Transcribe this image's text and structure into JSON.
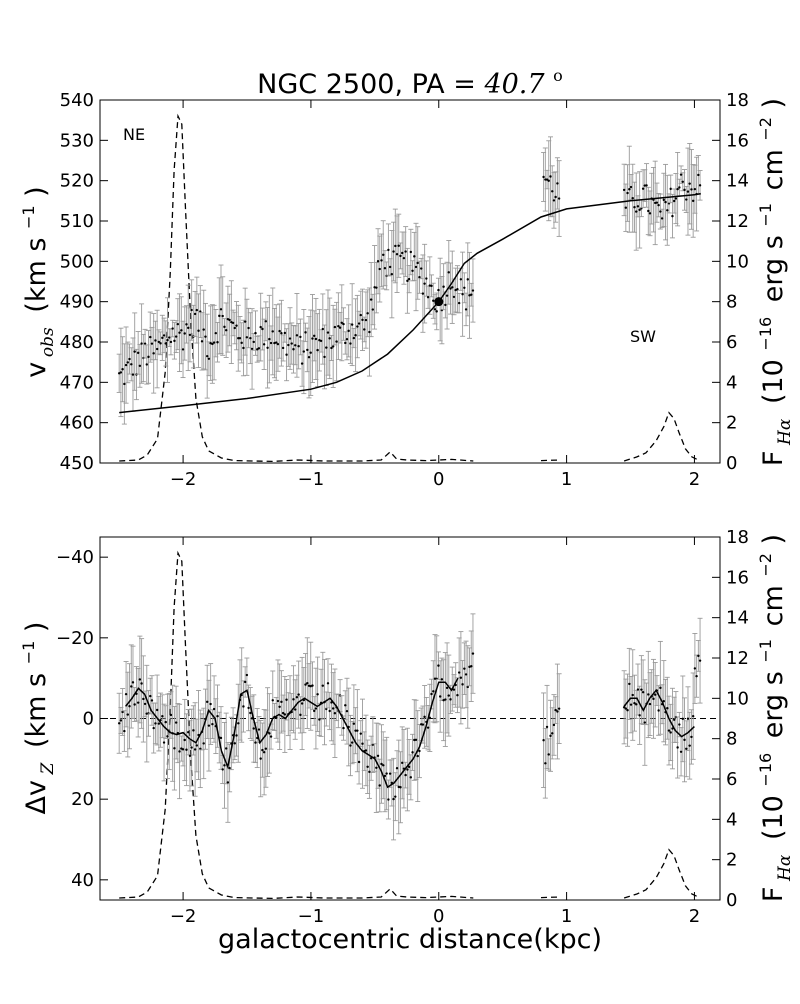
{
  "chart_data": [
    {
      "type": "line",
      "title_main": "NGC 2500, PA",
      "title_eq": "=",
      "title_angle": "40.7",
      "title_deg": "o",
      "ylabel_left": "v",
      "ylabel_left_sub": "obs",
      "ylabel_left_units": "(km s",
      "ylabel_left_exp": "−1",
      "ylabel_left_close": ")",
      "ylabel_right": "F",
      "ylabel_right_sub": "Hα",
      "ylabel_right_units_a": "(10",
      "ylabel_right_exp1": "−16",
      "ylabel_right_units_b": "erg s",
      "ylabel_right_exp2": "−1",
      "ylabel_right_units_c": "cm",
      "ylabel_right_exp3": "−2",
      "ylabel_right_close": ")",
      "annotations": [
        {
          "text": "NE",
          "x": -2.5,
          "y": 531
        },
        {
          "text": "SW",
          "x": 1.5,
          "y": 480
        }
      ],
      "xlim": [
        -2.65,
        2.2
      ],
      "ylim": [
        450,
        540
      ],
      "ylim_right": [
        0,
        18
      ],
      "xticks": [
        -2,
        -1,
        0,
        1,
        2
      ],
      "xtick_labels": [
        "−2",
        "−1",
        "0",
        "1",
        "2"
      ],
      "yticks": [
        450,
        460,
        470,
        480,
        490,
        500,
        510,
        520,
        530,
        540
      ],
      "yticks_right": [
        0,
        2,
        4,
        6,
        8,
        10,
        12,
        14,
        16,
        18
      ],
      "series": [
        {
          "name": "rotation model",
          "style": "solid",
          "x": [
            -2.5,
            -2.0,
            -1.5,
            -1.0,
            -0.8,
            -0.6,
            -0.4,
            -0.2,
            0.0,
            0.1,
            0.2,
            0.3,
            0.5,
            0.8,
            1.0,
            1.5,
            2.0,
            2.05
          ],
          "y": [
            462.5,
            464.2,
            466.0,
            468.3,
            470.0,
            472.8,
            477.0,
            483.0,
            490.0,
            494.5,
            499.5,
            502.0,
            505.5,
            511.0,
            513.0,
            515.0,
            516.5,
            516.8
          ]
        },
        {
          "name": "Halpha flux",
          "style": "dashed",
          "axis": "right",
          "segments": [
            {
              "x": [
                -2.5,
                -2.35,
                -2.28,
                -2.2,
                -2.14,
                -2.1,
                -2.07,
                -2.04,
                -2.01,
                -1.98,
                -1.94,
                -1.9,
                -1.85,
                -1.8,
                -1.7,
                -1.6,
                -1.45,
                -1.3,
                -1.1,
                -0.9,
                -0.6,
                -0.45,
                -0.38,
                -0.33,
                -0.25,
                -0.1,
                0.0,
                0.1,
                0.27
              ],
              "y": [
                0.1,
                0.15,
                0.4,
                1.2,
                4.5,
                9.5,
                14.5,
                17.2,
                16.8,
                12.5,
                7.0,
                3.2,
                1.3,
                0.6,
                0.25,
                0.12,
                0.1,
                0.08,
                0.15,
                0.1,
                0.1,
                0.15,
                0.55,
                0.2,
                0.15,
                0.12,
                0.15,
                0.18,
                0.1
              ]
            },
            {
              "x": [
                0.8,
                0.95
              ],
              "y": [
                0.12,
                0.15
              ]
            },
            {
              "x": [
                1.45,
                1.55,
                1.62,
                1.7,
                1.76,
                1.8,
                1.84,
                1.88,
                1.93,
                1.98,
                2.03
              ],
              "y": [
                0.1,
                0.3,
                0.5,
                1.1,
                1.8,
                2.5,
                2.2,
                1.5,
                0.7,
                0.3,
                0.15
              ]
            }
          ]
        },
        {
          "name": "center point",
          "style": "marker",
          "x": [
            0.0
          ],
          "y": [
            490
          ]
        }
      ]
    },
    {
      "type": "line",
      "xlabel": "galactocentric distance(kpc)",
      "ylabel_left_a": "Δv",
      "ylabel_left_sub": "Z",
      "ylabel_left_units": "(km s",
      "ylabel_left_exp": "−1",
      "ylabel_left_close": ")",
      "ylabel_right": "F",
      "ylabel_right_sub": "Hα",
      "ylabel_right_units_a": "(10",
      "ylabel_right_exp1": "−16",
      "ylabel_right_units_b": "erg s",
      "ylabel_right_exp2": "−1",
      "ylabel_right_units_c": "cm",
      "ylabel_right_exp3": "−2",
      "ylabel_right_close": ")",
      "xlim": [
        -2.65,
        2.2
      ],
      "ylim": [
        45,
        -45
      ],
      "ylim_right": [
        0,
        18
      ],
      "xticks": [
        -2,
        -1,
        0,
        1,
        2
      ],
      "xtick_labels": [
        "−2",
        "−1",
        "0",
        "1",
        "2"
      ],
      "yticks": [
        -40,
        -20,
        0,
        20,
        40
      ],
      "ytick_labels": [
        "−40",
        "−20",
        "0",
        "20",
        "40"
      ],
      "yticks_right": [
        0,
        2,
        4,
        6,
        8,
        10,
        12,
        14,
        16,
        18
      ],
      "series": [
        {
          "name": "smoothed residual",
          "style": "solid",
          "segments": [
            {
              "x": [
                -2.45,
                -2.4,
                -2.35,
                -2.3,
                -2.25,
                -2.2,
                -2.15,
                -2.1,
                -2.05,
                -2.0,
                -1.95,
                -1.9,
                -1.85,
                -1.8,
                -1.75,
                -1.7,
                -1.65,
                -1.6,
                -1.55,
                -1.5,
                -1.45,
                -1.4,
                -1.35,
                -1.3,
                -1.25,
                -1.2,
                -1.15,
                -1.1,
                -1.05,
                -1.0,
                -0.95,
                -0.9,
                -0.85,
                -0.8,
                -0.75,
                -0.7,
                -0.65,
                -0.6,
                -0.55,
                -0.5,
                -0.45,
                -0.4,
                -0.35,
                -0.3,
                -0.25,
                -0.2,
                -0.15,
                -0.1,
                -0.05,
                0.0,
                0.05,
                0.1,
                0.15
              ],
              "y": [
                -3,
                -5,
                -7.5,
                -6,
                -2,
                0,
                2,
                3.5,
                4,
                3.5,
                5,
                6,
                3,
                -2,
                0,
                8,
                12,
                4,
                -6,
                -7,
                0,
                6,
                4,
                0,
                -1,
                0,
                -2,
                -4,
                -5,
                -4,
                -3,
                -4,
                -5,
                -3,
                0,
                3,
                6,
                8,
                9,
                10,
                13,
                17,
                16,
                14,
                12,
                10,
                7,
                2,
                -4,
                -9,
                -9,
                -7,
                -10
              ]
            },
            {
              "x": [
                1.45,
                1.5,
                1.55,
                1.6,
                1.65,
                1.7,
                1.75,
                1.8,
                1.85,
                1.9,
                1.95,
                2.0
              ],
              "y": [
                -3,
                -5,
                -5,
                -2,
                -5,
                -7,
                -4,
                0,
                3,
                4.5,
                3.5,
                2
              ]
            }
          ]
        },
        {
          "name": "zero line",
          "style": "dashed",
          "x": [
            -2.65,
            2.2
          ],
          "y": [
            0,
            0
          ]
        },
        {
          "name": "Halpha flux",
          "style": "dashed",
          "axis": "right",
          "same_as_top": true
        }
      ]
    }
  ]
}
